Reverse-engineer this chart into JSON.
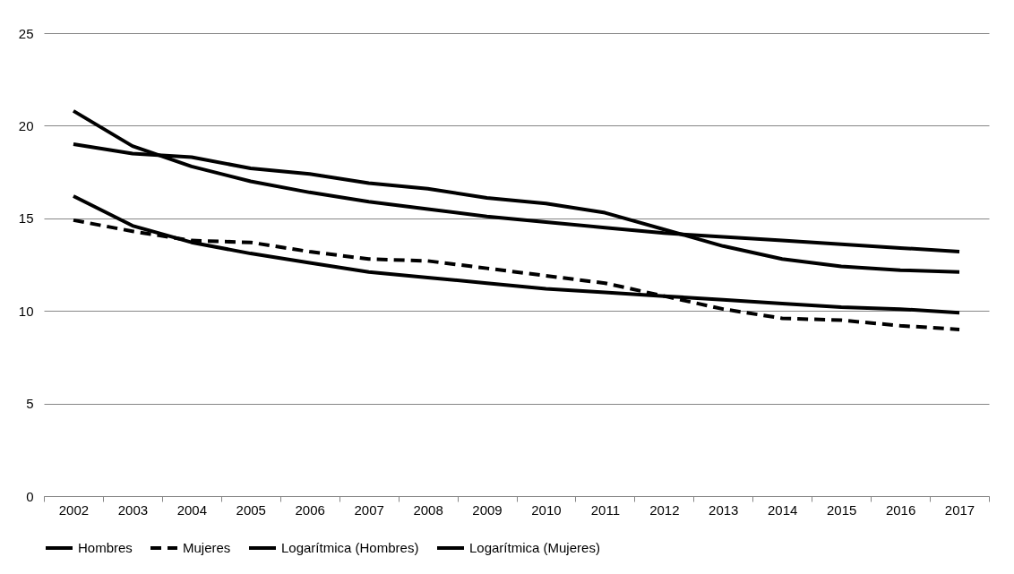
{
  "chart_data": {
    "type": "line",
    "categories": [
      "2002",
      "2003",
      "2004",
      "2005",
      "2006",
      "2007",
      "2008",
      "2009",
      "2010",
      "2011",
      "2012",
      "2013",
      "2014",
      "2015",
      "2016",
      "2017"
    ],
    "series": [
      {
        "name": "Hombres",
        "color": "#000000",
        "line_style": "solid",
        "values": [
          19.0,
          18.5,
          18.3,
          17.7,
          17.4,
          16.9,
          16.6,
          16.1,
          15.8,
          15.3,
          14.4,
          13.5,
          12.8,
          12.4,
          12.2,
          12.1
        ]
      },
      {
        "name": "Mujeres",
        "color": "#000000",
        "line_style": "dashed",
        "values": [
          14.9,
          14.3,
          13.8,
          13.7,
          13.2,
          12.8,
          12.7,
          12.3,
          11.9,
          11.5,
          10.8,
          10.1,
          9.6,
          9.5,
          9.2,
          9.0
        ]
      },
      {
        "name": "Logarítmica (Hombres)",
        "color": "#000000",
        "line_style": "solid",
        "values": [
          20.8,
          18.9,
          17.8,
          17.0,
          16.4,
          15.9,
          15.5,
          15.1,
          14.8,
          14.5,
          14.2,
          14.0,
          13.8,
          13.6,
          13.4,
          13.2
        ]
      },
      {
        "name": "Logarítmica (Mujeres)",
        "color": "#000000",
        "line_style": "solid",
        "values": [
          16.2,
          14.6,
          13.7,
          13.1,
          12.6,
          12.1,
          11.8,
          11.5,
          11.2,
          11.0,
          10.8,
          10.6,
          10.4,
          10.2,
          10.1,
          9.9
        ]
      }
    ],
    "ylim": [
      0,
      25
    ],
    "yticks": [
      0,
      5,
      10,
      15,
      20,
      25
    ],
    "grid": "y",
    "legend": "bottom",
    "marker": "none"
  }
}
